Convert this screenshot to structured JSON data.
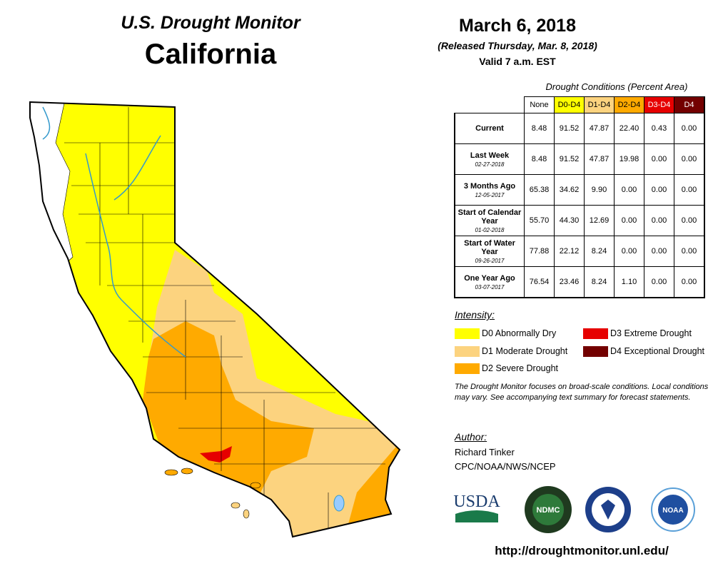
{
  "header": {
    "title": "U.S. Drought Monitor",
    "region": "California"
  },
  "dates": {
    "date": "March 6, 2018",
    "released": "(Released Thursday, Mar. 8, 2018)",
    "valid": "Valid 7 a.m. EST"
  },
  "table": {
    "caption": "Drought Conditions (Percent Area)",
    "columns": [
      "None",
      "D0-D4",
      "D1-D4",
      "D2-D4",
      "D3-D4",
      "D4"
    ],
    "rows": [
      {
        "label": "Current",
        "cells": [
          "8.48",
          "91.52",
          "47.87",
          "22.40",
          "0.43",
          "0.00"
        ]
      },
      {
        "label": "Last Week",
        "date": "02-27-2018",
        "cells": [
          "8.48",
          "91.52",
          "47.87",
          "19.98",
          "0.00",
          "0.00"
        ]
      },
      {
        "label": "3 Months Ago",
        "date": "12-05-2017",
        "cells": [
          "65.38",
          "34.62",
          "9.90",
          "0.00",
          "0.00",
          "0.00"
        ]
      },
      {
        "label": "Start of Calendar Year",
        "date": "01-02-2018",
        "cells": [
          "55.70",
          "44.30",
          "12.69",
          "0.00",
          "0.00",
          "0.00"
        ]
      },
      {
        "label": "Start of Water Year",
        "date": "09-26-2017",
        "cells": [
          "77.88",
          "22.12",
          "8.24",
          "0.00",
          "0.00",
          "0.00"
        ]
      },
      {
        "label": "One Year Ago",
        "date": "03-07-2017",
        "cells": [
          "76.54",
          "23.46",
          "8.24",
          "1.10",
          "0.00",
          "0.00"
        ]
      }
    ]
  },
  "legend": {
    "title": "Intensity:",
    "items": [
      "D0 Abnormally Dry",
      "D1 Moderate Drought",
      "D2 Severe Drought",
      "D3 Extreme Drought",
      "D4 Exceptional Drought"
    ]
  },
  "note": "The Drought Monitor focuses on broad-scale conditions. Local conditions may vary. See accompanying text summary for forecast statements.",
  "author": {
    "title": "Author:",
    "name": "Richard Tinker",
    "org": "CPC/NOAA/NWS/NCEP"
  },
  "logos": [
    "USDA",
    "NDMC",
    "NOAA"
  ],
  "url": "http://droughtmonitor.unl.edu/"
}
